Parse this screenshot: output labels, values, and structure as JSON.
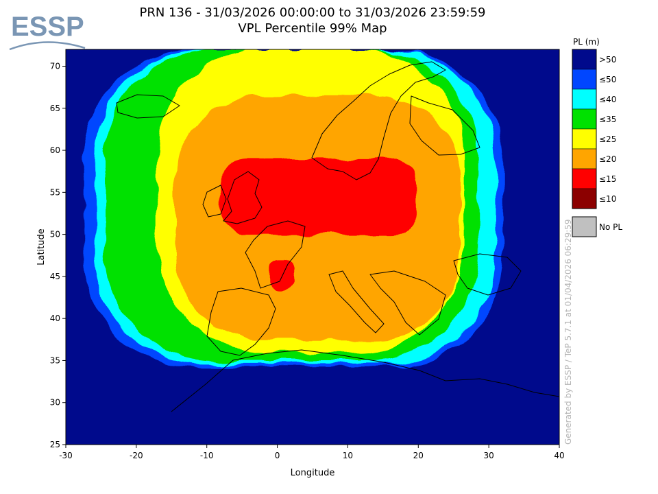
{
  "logo": {
    "text": "ESSP",
    "color": "#7a96b4"
  },
  "chart_data": {
    "type": "heatmap",
    "title": "PRN 136 - 31/03/2026 00:00:00 to 31/03/2026 23:59:59",
    "subtitle": "VPL Percentile 99% Map",
    "xlabel": "Longitude",
    "ylabel": "Latitude",
    "xlim": [
      -30,
      40
    ],
    "ylim": [
      25,
      72
    ],
    "xticks": [
      -30,
      -20,
      -10,
      0,
      10,
      20,
      30,
      40
    ],
    "yticks": [
      25,
      30,
      35,
      40,
      45,
      50,
      55,
      60,
      65,
      70
    ],
    "grid": false,
    "legend_position": "right",
    "legend": {
      "title": "PL (m)",
      "bins": [
        {
          "label": ">50",
          "color": "#000a8c"
        },
        {
          "label": "≤50",
          "color": "#0046ff"
        },
        {
          "label": "≤40",
          "color": "#00ffff"
        },
        {
          "label": "≤35",
          "color": "#00e100"
        },
        {
          "label": "≤25",
          "color": "#ffff00"
        },
        {
          "label": "≤20",
          "color": "#ffa500"
        },
        {
          "label": "≤15",
          "color": "#ff0000"
        },
        {
          "label": "≤10",
          "color": "#8c0000"
        }
      ],
      "nopl": {
        "label": "No PL",
        "color": "#c0c0c0"
      }
    },
    "coverage_limit_lat": 34,
    "regions": [
      {
        "level": "≤50",
        "lon": [
          -27.5,
          32
        ],
        "lat": [
          34.2,
          72
        ],
        "color": "#0046ff"
      },
      {
        "level": "≤40",
        "lon": [
          -26,
          31
        ],
        "lat": [
          34.6,
          72
        ],
        "color": "#00ffff"
      },
      {
        "level": "≤35",
        "lon": [
          -24.5,
          28.5
        ],
        "lat": [
          35,
          72
        ],
        "color": "#00e100"
      },
      {
        "level": "≤25",
        "lon": [
          -17,
          26.5
        ],
        "lat": [
          36,
          72
        ],
        "color": "#ffff00"
      },
      {
        "level": "≤20",
        "lon": [
          -14.5,
          26
        ],
        "lat": [
          37.5,
          66.5
        ],
        "color": "#ffa500"
      },
      {
        "level": "≤15",
        "lon": [
          -8,
          20
        ],
        "lat": [
          50,
          59
        ],
        "color": "#ff0000"
      },
      {
        "level": "≤15",
        "lon": [
          -1,
          2.3
        ],
        "lat": [
          43.5,
          47
        ],
        "color": "#ff0000"
      }
    ],
    "footer_note": "Generated by ESSP / TeP 5.7.1 at 01/04/2026 06:29:59"
  }
}
